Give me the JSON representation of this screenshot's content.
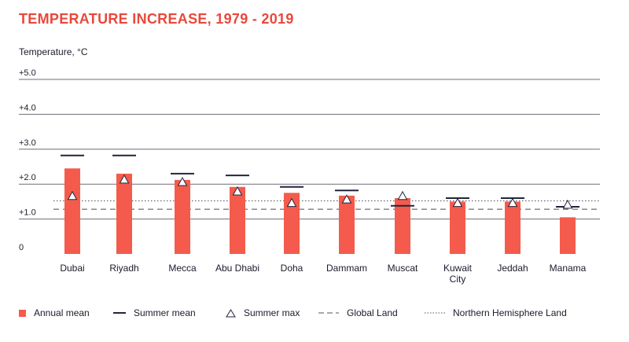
{
  "chart_data": {
    "type": "bar",
    "title": "TEMPERATURE INCREASE, 1979 - 2019",
    "ylabel": "Temperature, °C",
    "xlabel": "",
    "ylim": [
      0,
      5.0
    ],
    "yticks": [
      {
        "value": 0,
        "label": "0"
      },
      {
        "value": 1.0,
        "label": "+1.0"
      },
      {
        "value": 2.0,
        "label": "+2.0"
      },
      {
        "value": 3.0,
        "label": "+3.0"
      },
      {
        "value": 4.0,
        "label": "+4.0"
      },
      {
        "value": 5.0,
        "label": "+5.0"
      }
    ],
    "grid": true,
    "categories": [
      "Dubai",
      "Riyadh",
      "Mecca",
      "Abu Dhabi",
      "Doha",
      "Dammam",
      "Muscat",
      "Kuwait City",
      "Jeddah",
      "Manama"
    ],
    "category_lines": [
      [
        "Dubai"
      ],
      [
        "Riyadh"
      ],
      [
        "Mecca"
      ],
      [
        "Abu Dhabi"
      ],
      [
        "Doha"
      ],
      [
        "Dammam"
      ],
      [
        "Muscat"
      ],
      [
        "Kuwait",
        "City"
      ],
      [
        "Jeddah"
      ],
      [
        "Manama"
      ]
    ],
    "series": [
      {
        "name": "Annual mean",
        "kind": "bar",
        "values": [
          2.45,
          2.3,
          2.12,
          1.92,
          1.75,
          1.67,
          1.6,
          1.5,
          1.5,
          1.05
        ]
      },
      {
        "name": "Summer mean",
        "kind": "dash",
        "values": [
          2.82,
          2.82,
          2.3,
          2.25,
          1.92,
          1.82,
          1.38,
          1.6,
          1.6,
          1.35
        ]
      },
      {
        "name": "Summer max",
        "kind": "triangle",
        "values": [
          1.65,
          2.12,
          2.05,
          1.78,
          1.45,
          1.55,
          1.65,
          1.45,
          1.45,
          1.4
        ]
      }
    ],
    "reference_lines": [
      {
        "name": "Global Land",
        "value": 1.28,
        "style": "dashed"
      },
      {
        "name": "Northern Hemisphere Land",
        "value": 1.52,
        "style": "dotted"
      }
    ],
    "legend_position": "bottom",
    "colors": {
      "title": "#e8483b",
      "bar": "#f45b4c",
      "dash": "#23263b",
      "grid": "#6e6e76",
      "text": "#1b1b2b"
    }
  }
}
